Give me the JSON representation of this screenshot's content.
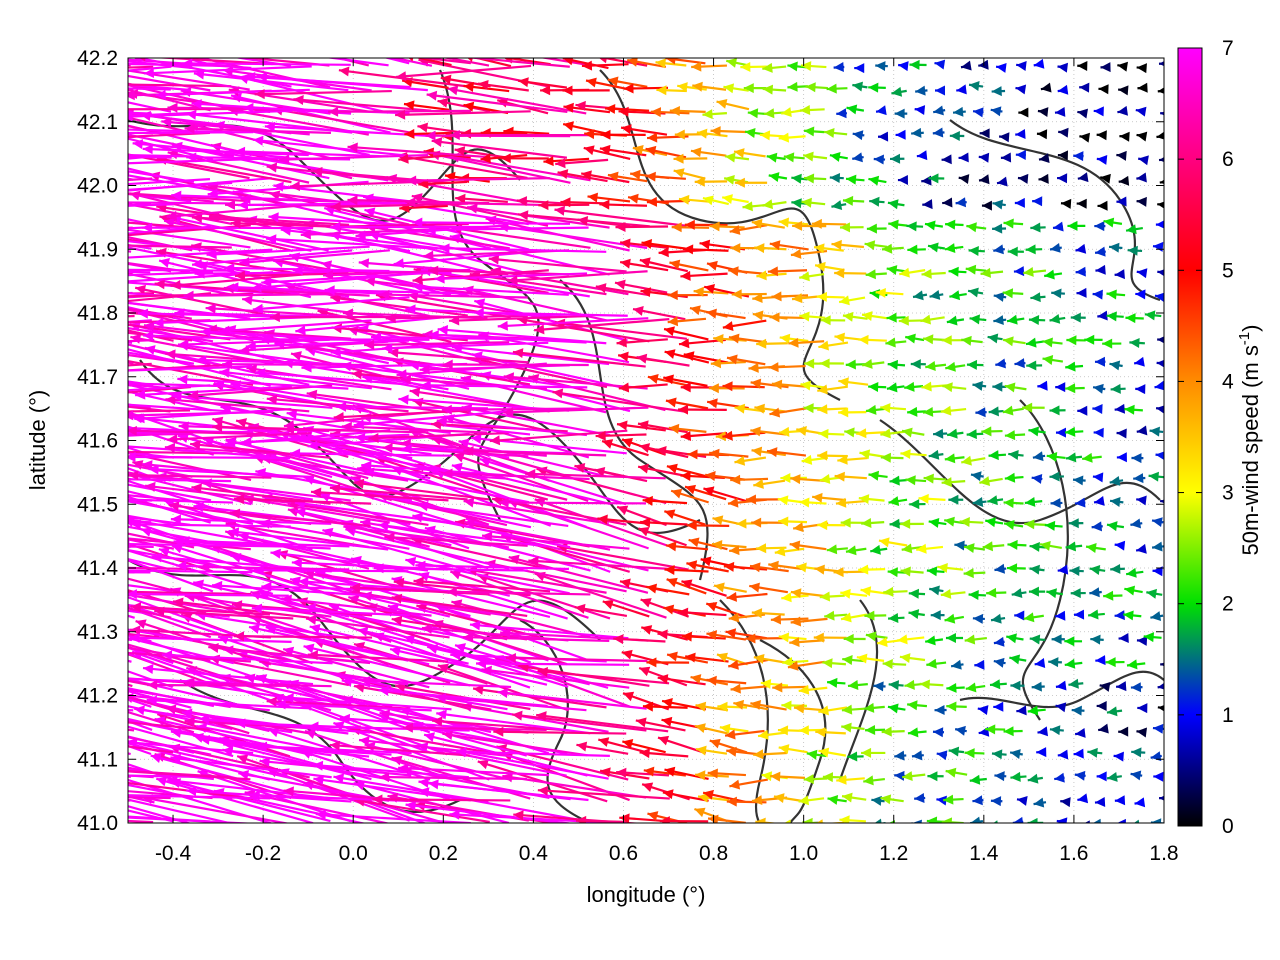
{
  "chart_data": {
    "type": "vector-field",
    "xlabel": "longitude (°)",
    "ylabel": "latitude (°)",
    "xlim": [
      -0.5,
      1.8
    ],
    "ylim": [
      41.0,
      42.2
    ],
    "xticks": [
      -0.4,
      -0.2,
      0.0,
      0.2,
      0.4,
      0.6,
      0.8,
      1.0,
      1.2,
      1.4,
      1.6,
      1.8
    ],
    "xtick_labels": [
      "-0.4",
      "-0.2",
      "0.0",
      "0.2",
      "0.4",
      "0.6",
      "0.8",
      "1.0",
      "1.2",
      "1.4",
      "1.6",
      "1.8"
    ],
    "yticks": [
      41.0,
      41.1,
      41.2,
      41.3,
      41.4,
      41.5,
      41.6,
      41.7,
      41.8,
      41.9,
      42.0,
      42.1,
      42.2
    ],
    "ytick_labels": [
      "41.0",
      "41.1",
      "41.2",
      "41.3",
      "41.4",
      "41.5",
      "41.6",
      "41.7",
      "41.8",
      "41.9",
      "42.0",
      "42.1",
      "42.2"
    ],
    "grid": true,
    "colorbar": {
      "label_main": "50m-wind speed (m s",
      "label_sup": "-1",
      "label_end": ")",
      "range": [
        0,
        7
      ],
      "ticks": [
        0,
        1,
        2,
        3,
        4,
        5,
        6,
        7
      ],
      "tick_labels": [
        "0",
        "1",
        "2",
        "3",
        "4",
        "5",
        "6",
        "7"
      ],
      "colors": [
        "#000000",
        "#0000ff",
        "#00e000",
        "#ffff00",
        "#ff8c00",
        "#ff0000",
        "#ff00ff"
      ]
    },
    "wind_field": {
      "description_regions": [
        {
          "region": "west (lon < 0.6)",
          "speed_ms": 7,
          "direction": "westward"
        },
        {
          "region": "central (0.6–1.1)",
          "speed_ms": 5,
          "direction": "westward"
        },
        {
          "region": "east (lon > 1.2)",
          "speed_ms": 1.5,
          "direction": "westward"
        }
      ]
    },
    "contours": {
      "color": "#333333",
      "note": "terrain height contours"
    }
  }
}
